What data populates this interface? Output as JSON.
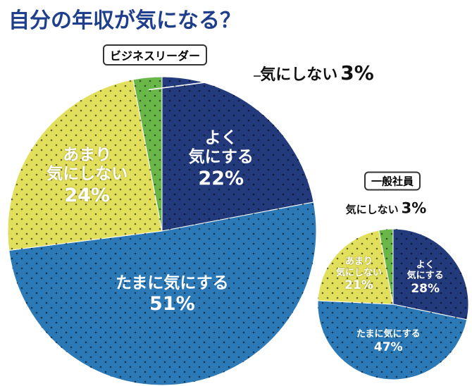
{
  "title": "自分の年収が気になる？",
  "chart_data": [
    {
      "type": "pie",
      "title": "ビジネスリーダー",
      "categories": [
        "よく\n気にする",
        "たまに気にする",
        "あまり\n気にしない",
        "気にしない"
      ],
      "values": [
        22,
        51,
        24,
        3
      ],
      "value_labels": [
        "22%",
        "51%",
        "24%",
        "3%"
      ],
      "colors": [
        "#233a7c",
        "#2b79b6",
        "#e2df5c",
        "#6ab749"
      ]
    },
    {
      "type": "pie",
      "title": "一般社員",
      "categories": [
        "よく\n気にする",
        "たまに気にする",
        "あまり\n気にしない",
        "気にしない"
      ],
      "values": [
        28,
        47,
        21,
        3
      ],
      "value_labels": [
        "28%",
        "47%",
        "21%",
        "3%"
      ],
      "colors": [
        "#233a7c",
        "#2b79b6",
        "#e2df5c",
        "#6ab749"
      ]
    }
  ]
}
